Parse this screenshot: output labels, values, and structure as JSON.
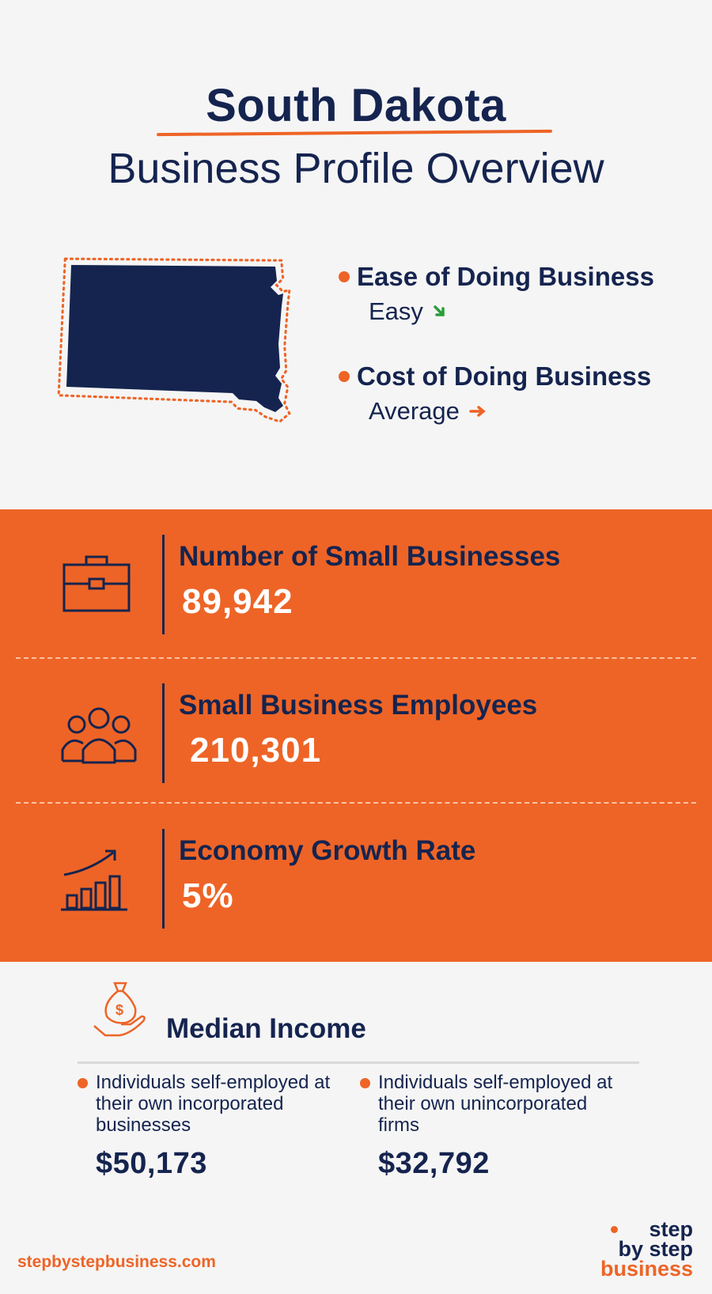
{
  "header": {
    "title": "South Dakota",
    "subtitle": "Business Profile Overview"
  },
  "ratings": [
    {
      "label": "Ease of Doing Business",
      "value": "Easy",
      "trend_icon": "arrow-down-right-icon",
      "trend_color": "#2a9d3a"
    },
    {
      "label": "Cost of Doing Business",
      "value": "Average",
      "trend_icon": "arrow-right-icon",
      "trend_color": "#ee6426"
    }
  ],
  "stats": [
    {
      "icon": "briefcase-icon",
      "label": "Number of Small Businesses",
      "value": "89,942"
    },
    {
      "icon": "people-group-icon",
      "label": "Small Business Employees",
      "value": "210,301"
    },
    {
      "icon": "growth-chart-icon",
      "label": "Economy Growth Rate",
      "value": "5%"
    }
  ],
  "median_income": {
    "icon": "money-bag-hand-icon",
    "title": "Median Income",
    "items": [
      {
        "description": "Individuals self-employed at their own incorporated businesses",
        "amount": "$50,173"
      },
      {
        "description": "Individuals self-employed at their own unincorporated firms",
        "amount": "$32,792"
      }
    ]
  },
  "footer": {
    "url": "stepbystepbusiness.com",
    "logo": {
      "line1": "step",
      "line2": "by step",
      "line3": "business"
    }
  },
  "colors": {
    "accent": "#ee6426",
    "navy": "#15244f",
    "background": "#f5f5f5"
  }
}
